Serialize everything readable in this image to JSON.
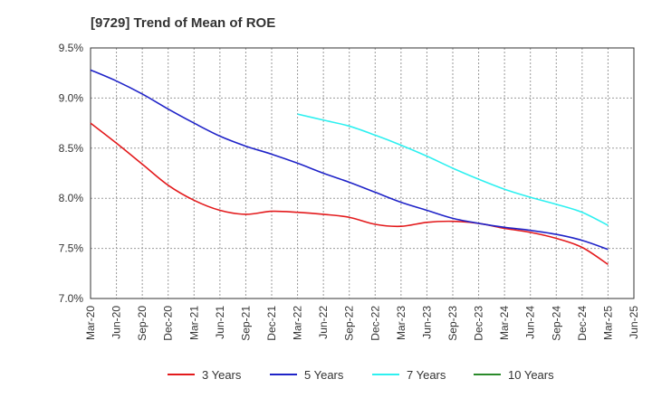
{
  "chart_data": {
    "type": "line",
    "title": "[9729]  Trend of Mean of ROE",
    "xlabel": "",
    "ylabel": "",
    "x_ticks": [
      "Mar-20",
      "Jun-20",
      "Sep-20",
      "Dec-20",
      "Mar-21",
      "Jun-21",
      "Sep-21",
      "Dec-21",
      "Mar-22",
      "Jun-22",
      "Sep-22",
      "Dec-22",
      "Mar-23",
      "Jun-23",
      "Sep-23",
      "Dec-23",
      "Mar-24",
      "Jun-24",
      "Sep-24",
      "Dec-24",
      "Mar-25",
      "Jun-25"
    ],
    "y_ticks": [
      "7.0%",
      "7.5%",
      "8.0%",
      "8.5%",
      "9.0%",
      "9.5%"
    ],
    "ylim": [
      7.0,
      9.5
    ],
    "grid": "vertical-dashed",
    "legend": "bottom",
    "series": [
      {
        "name": "3 Years",
        "color": "#e31a1c",
        "x": [
          "Mar-20",
          "Jun-20",
          "Sep-20",
          "Dec-20",
          "Mar-21",
          "Jun-21",
          "Sep-21",
          "Dec-21",
          "Mar-22",
          "Jun-22",
          "Sep-22",
          "Dec-22",
          "Mar-23",
          "Jun-23",
          "Sep-23",
          "Dec-23",
          "Mar-24",
          "Jun-24",
          "Sep-24",
          "Dec-24",
          "Mar-25"
        ],
        "values": [
          8.75,
          8.55,
          8.34,
          8.13,
          7.98,
          7.88,
          7.84,
          7.87,
          7.86,
          7.84,
          7.81,
          7.74,
          7.72,
          7.76,
          7.77,
          7.75,
          7.7,
          7.66,
          7.6,
          7.51,
          7.34
        ]
      },
      {
        "name": "5 Years",
        "color": "#1f23c8",
        "x": [
          "Mar-20",
          "Jun-20",
          "Sep-20",
          "Dec-20",
          "Mar-21",
          "Jun-21",
          "Sep-21",
          "Dec-21",
          "Mar-22",
          "Jun-22",
          "Sep-22",
          "Dec-22",
          "Mar-23",
          "Jun-23",
          "Sep-23",
          "Dec-23",
          "Mar-24",
          "Jun-24",
          "Sep-24",
          "Dec-24",
          "Mar-25"
        ],
        "values": [
          9.28,
          9.17,
          9.04,
          8.89,
          8.75,
          8.62,
          8.52,
          8.44,
          8.35,
          8.25,
          8.16,
          8.06,
          7.96,
          7.88,
          7.8,
          7.75,
          7.71,
          7.68,
          7.64,
          7.58,
          7.49
        ]
      },
      {
        "name": "7 Years",
        "color": "#2ef0f0",
        "x": [
          "Mar-22",
          "Jun-22",
          "Sep-22",
          "Dec-22",
          "Mar-23",
          "Jun-23",
          "Sep-23",
          "Dec-23",
          "Mar-24",
          "Jun-24",
          "Sep-24",
          "Dec-24",
          "Mar-25"
        ],
        "values": [
          8.84,
          8.78,
          8.72,
          8.63,
          8.53,
          8.42,
          8.3,
          8.19,
          8.09,
          8.01,
          7.94,
          7.86,
          7.73
        ]
      },
      {
        "name": "10 Years",
        "color": "#2a8a2a",
        "x": [],
        "values": []
      }
    ]
  }
}
